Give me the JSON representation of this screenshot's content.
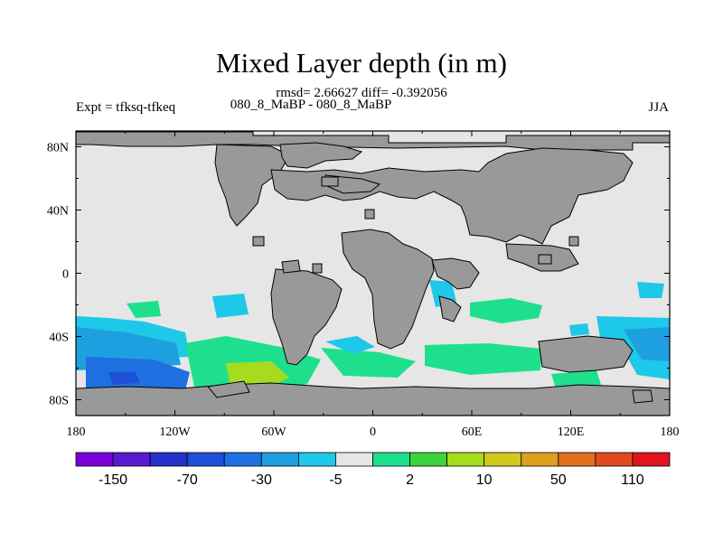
{
  "chart_data": {
    "type": "heatmap",
    "title": "Mixed Layer depth (in m)",
    "stats_line": "rmsd= 2.66627 diff= -0.392056",
    "subtitle": "080_8_MaBP - 080_8_MaBP",
    "left_label": "Expt = tfksq-tfkeq",
    "right_label": "JJA",
    "x_ticks": [
      "180",
      "120W",
      "60W",
      "0",
      "60E",
      "120E",
      "180"
    ],
    "x_tick_values": [
      -180,
      -120,
      -60,
      0,
      60,
      120,
      180
    ],
    "y_ticks": [
      "80N",
      "40N",
      "0",
      "40S",
      "80S"
    ],
    "y_tick_values": [
      80,
      40,
      0,
      -40,
      -80
    ],
    "xlim": [
      -180,
      180
    ],
    "ylim": [
      -90,
      90
    ],
    "colorbar": {
      "colors": [
        "#7a00d8",
        "#5a1ad0",
        "#2630c8",
        "#1e50d8",
        "#1e70e0",
        "#1ea0e0",
        "#1ec8e8",
        "#e6e6e6",
        "#1ee08c",
        "#3cd23c",
        "#a6dc1e",
        "#d2c81e",
        "#dca01e",
        "#e0701e",
        "#e04a1e",
        "#e0141e"
      ],
      "labels": [
        "-150",
        "-70",
        "-30",
        "-5",
        "2",
        "10",
        "50",
        "110"
      ]
    },
    "colors": {
      "land": "#999999",
      "neutral": "#e6e6e6"
    }
  }
}
